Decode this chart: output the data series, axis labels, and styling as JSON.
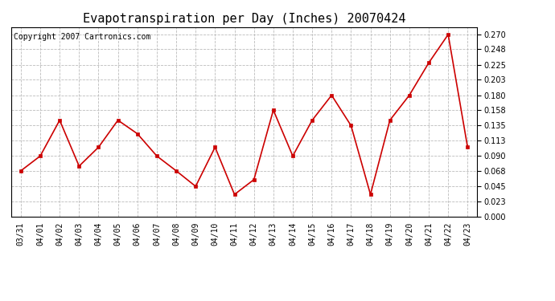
{
  "title": "Evapotranspiration per Day (Inches) 20070424",
  "copyright": "Copyright 2007 Cartronics.com",
  "line_color": "#cc0000",
  "marker_color": "#cc0000",
  "background_color": "#ffffff",
  "plot_background": "#ffffff",
  "grid_color": "#bbbbbb",
  "dates": [
    "03/31",
    "04/01",
    "04/02",
    "04/03",
    "04/04",
    "04/05",
    "04/06",
    "04/07",
    "04/08",
    "04/09",
    "04/10",
    "04/11",
    "04/12",
    "04/13",
    "04/14",
    "04/15",
    "04/16",
    "04/17",
    "04/18",
    "04/19",
    "04/20",
    "04/21",
    "04/22",
    "04/23"
  ],
  "values": [
    0.068,
    0.09,
    0.143,
    0.075,
    0.103,
    0.143,
    0.123,
    0.09,
    0.068,
    0.045,
    0.103,
    0.033,
    0.055,
    0.158,
    0.09,
    0.143,
    0.18,
    0.135,
    0.033,
    0.143,
    0.18,
    0.228,
    0.27,
    0.103
  ],
  "yticks": [
    0.0,
    0.023,
    0.045,
    0.068,
    0.09,
    0.113,
    0.135,
    0.158,
    0.18,
    0.203,
    0.225,
    0.248,
    0.27
  ],
  "ylim": [
    0.0,
    0.281
  ],
  "title_fontsize": 11,
  "tick_fontsize": 7,
  "copyright_fontsize": 7
}
